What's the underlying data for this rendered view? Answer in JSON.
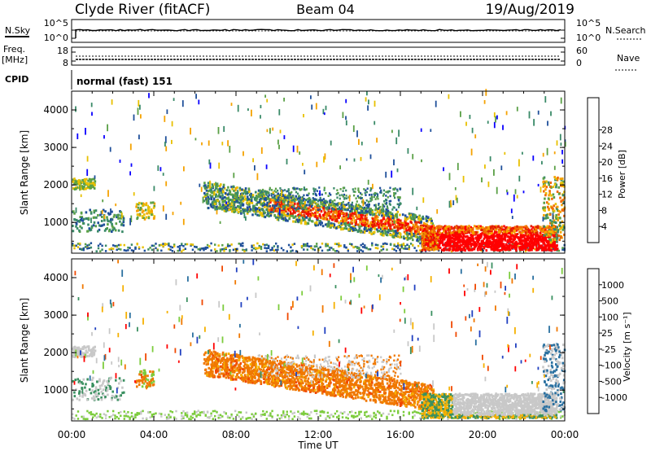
{
  "header": {
    "station": "Clyde River (fitACF)",
    "beam": "Beam 04",
    "date": "19/Aug/2019"
  },
  "noise_panel": {
    "left_label": "N.Sky",
    "left_ticks": [
      "10^5",
      "10^0"
    ],
    "right_ticks": [
      "10^5",
      "10^0"
    ],
    "right_label": "N.Search"
  },
  "freq_panel": {
    "label_line1": "Freq.",
    "label_line2": "[MHz]",
    "left_ticks": [
      "18",
      "8"
    ],
    "right_ticks": [
      "60",
      "0"
    ],
    "right_label": "Nave"
  },
  "cpid": {
    "label": "CPID",
    "value": "normal (fast) 151"
  },
  "time_axis": {
    "label": "Time UT",
    "ticks": [
      "00:00",
      "04:00",
      "08:00",
      "12:00",
      "16:00",
      "20:00",
      "00:00"
    ]
  },
  "colors": {
    "power": [
      "#0a00ff",
      "#1f4f9a",
      "#3a8a68",
      "#5aa046",
      "#e8c000",
      "#f5a200",
      "#f06a00",
      "#e02000",
      "#ff0000"
    ],
    "velocity": [
      "#ff0000",
      "#f04800",
      "#f07800",
      "#f5b000",
      "#c8c8c8",
      "#7ccc3c",
      "#3a9060",
      "#2a70a0",
      "#2040c0"
    ]
  },
  "chart_data": [
    {
      "type": "heatmap",
      "name": "power",
      "ylabel": "Slant Range [km]",
      "yticks": [
        1000,
        2000,
        3000,
        4000
      ],
      "ylim": [
        180,
        4500
      ],
      "xlim": [
        0,
        24
      ],
      "colorbar": {
        "label": "Power [dB]",
        "ticks": [
          "4",
          "8",
          "12",
          "16",
          "20",
          "24",
          "28"
        ]
      }
    },
    {
      "type": "heatmap",
      "name": "velocity",
      "ylabel": "Slant Range [km]",
      "yticks": [
        1000,
        2000,
        3000,
        4000
      ],
      "ylim": [
        180,
        4500
      ],
      "xlim": [
        0,
        24
      ],
      "colorbar": {
        "label": "Velocity [m s⁻¹]",
        "ticks": [
          "1000",
          "500",
          "100",
          "25",
          "-25",
          "-100",
          "-500",
          "-1000"
        ]
      }
    }
  ]
}
